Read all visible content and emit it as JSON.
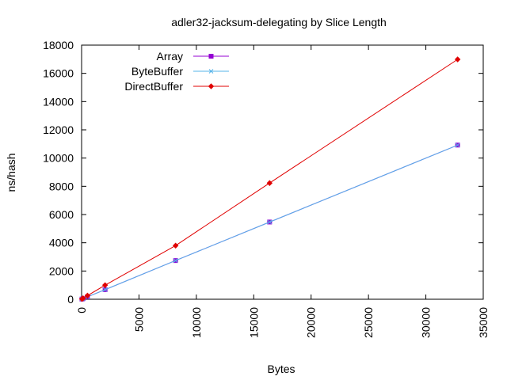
{
  "chart_data": {
    "type": "line",
    "title": "adler32-jacksum-delegating by Slice Length",
    "xlabel": "Bytes",
    "ylabel": "ns/hash",
    "xlim": [
      0,
      35000
    ],
    "ylim": [
      0,
      18000
    ],
    "xticks": [
      "0",
      "5000",
      "10000",
      "15000",
      "20000",
      "25000",
      "30000",
      "35000"
    ],
    "yticks": [
      "0",
      "2000",
      "4000",
      "6000",
      "8000",
      "10000",
      "12000",
      "14000",
      "16000",
      "18000"
    ],
    "grid": false,
    "legend_position": "top-left",
    "series": [
      {
        "name": "Array",
        "color": "#9400d3",
        "marker": "filled-square",
        "x": [
          32,
          128,
          512,
          2048,
          8192,
          16384,
          32768
        ],
        "y": [
          12,
          45,
          175,
          680,
          2740,
          5470,
          10920
        ]
      },
      {
        "name": "ByteBuffer",
        "color": "#56b4e9",
        "marker": "x",
        "x": [
          32,
          128,
          512,
          2048,
          8192,
          16384,
          32768
        ],
        "y": [
          12,
          45,
          175,
          680,
          2740,
          5470,
          10920
        ]
      },
      {
        "name": "DirectBuffer",
        "color": "#e00000",
        "marker": "filled-diamond",
        "x": [
          32,
          128,
          512,
          2048,
          8192,
          16384,
          32768
        ],
        "y": [
          20,
          70,
          260,
          1000,
          3800,
          8230,
          16990
        ]
      }
    ]
  }
}
